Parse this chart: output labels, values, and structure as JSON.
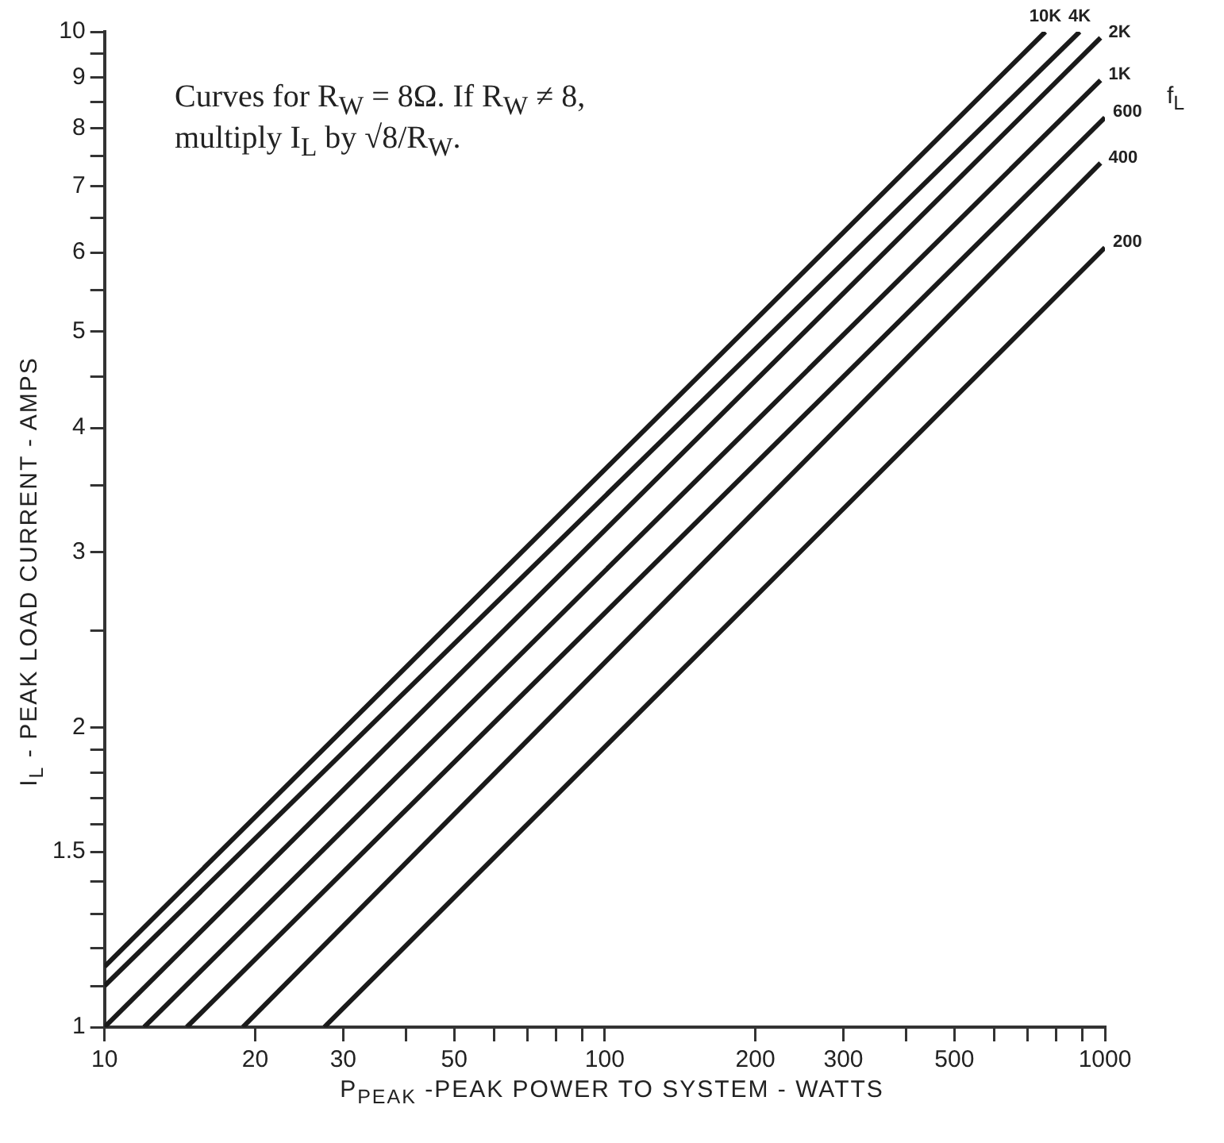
{
  "chart_data": {
    "type": "line",
    "log": "xy",
    "xlabel": "P$_{PEAK}$ -PEAK POWER TO SYSTEM - WATTS",
    "ylabel": "I$_{L}$ - PEAK LOAD CURRENT - AMPS",
    "legend_title": "f$_{L}$",
    "annotations": [
      "Curves for R$_{W}$ = 8Ω. If R$_{W}$ ≠ 8, multiply I$_{L}$ by √8/R$_{W}$."
    ],
    "xlim": [
      10,
      1000
    ],
    "ylim": [
      1,
      10
    ],
    "xticks": [
      10,
      20,
      30,
      {
        "value": 40,
        "label": null
      },
      50,
      {
        "value": 60,
        "label": null
      },
      {
        "value": 70,
        "label": null
      },
      {
        "value": 80,
        "label": null
      },
      {
        "value": 90,
        "label": null
      },
      100,
      200,
      300,
      {
        "value": 400,
        "label": null
      },
      500,
      {
        "value": 600,
        "label": null
      },
      {
        "value": 700,
        "label": null
      },
      {
        "value": 800,
        "label": null
      },
      {
        "value": 900,
        "label": null
      },
      1000
    ],
    "yticks": [
      1,
      {
        "value": 1.1,
        "label": null
      },
      {
        "value": 1.2,
        "label": null
      },
      {
        "value": 1.3,
        "label": null
      },
      {
        "value": 1.4,
        "label": null
      },
      1.5,
      {
        "value": 1.6,
        "label": null
      },
      {
        "value": 1.7,
        "label": null
      },
      {
        "value": 1.8,
        "label": null
      },
      {
        "value": 1.9,
        "label": null
      },
      2,
      {
        "value": 2.5,
        "label": null
      },
      3,
      {
        "value": 3.5,
        "label": null
      },
      4,
      {
        "value": 4.5,
        "label": null
      },
      5,
      {
        "value": 5.5,
        "label": null
      },
      6,
      {
        "value": 6.5,
        "label": null
      },
      7,
      {
        "value": 7.5,
        "label": null
      },
      8,
      {
        "value": 8.5,
        "label": null
      },
      9,
      {
        "value": 9.5,
        "label": null
      },
      10
    ],
    "grid": false,
    "legend": false,
    "marker": "none",
    "line_style": "solid",
    "series": [
      {
        "name": "10K",
        "color": "#1a1a1a",
        "x": [
          10,
          760
        ],
        "values": [
          1.15,
          10
        ]
      },
      {
        "name": "4K",
        "color": "#1a1a1a",
        "x": [
          10,
          890
        ],
        "values": [
          1.1,
          10
        ]
      },
      {
        "name": "2K",
        "color": "#1a1a1a",
        "x": [
          10,
          980
        ],
        "values": [
          1,
          9.86
        ]
      },
      {
        "name": "1K",
        "color": "#1a1a1a",
        "x": [
          12,
          980
        ],
        "values": [
          1,
          8.94
        ]
      },
      {
        "name": "600",
        "color": "#1a1a1a",
        "x": [
          14.6,
          1000
        ],
        "values": [
          1,
          8.2
        ]
      },
      {
        "name": "400",
        "color": "#1a1a1a",
        "x": [
          18.9,
          980
        ],
        "values": [
          1,
          7.38
        ]
      },
      {
        "name": "200",
        "color": "#1a1a1a",
        "x": [
          27.5,
          1000
        ],
        "values": [
          1,
          6.07
        ]
      }
    ]
  }
}
